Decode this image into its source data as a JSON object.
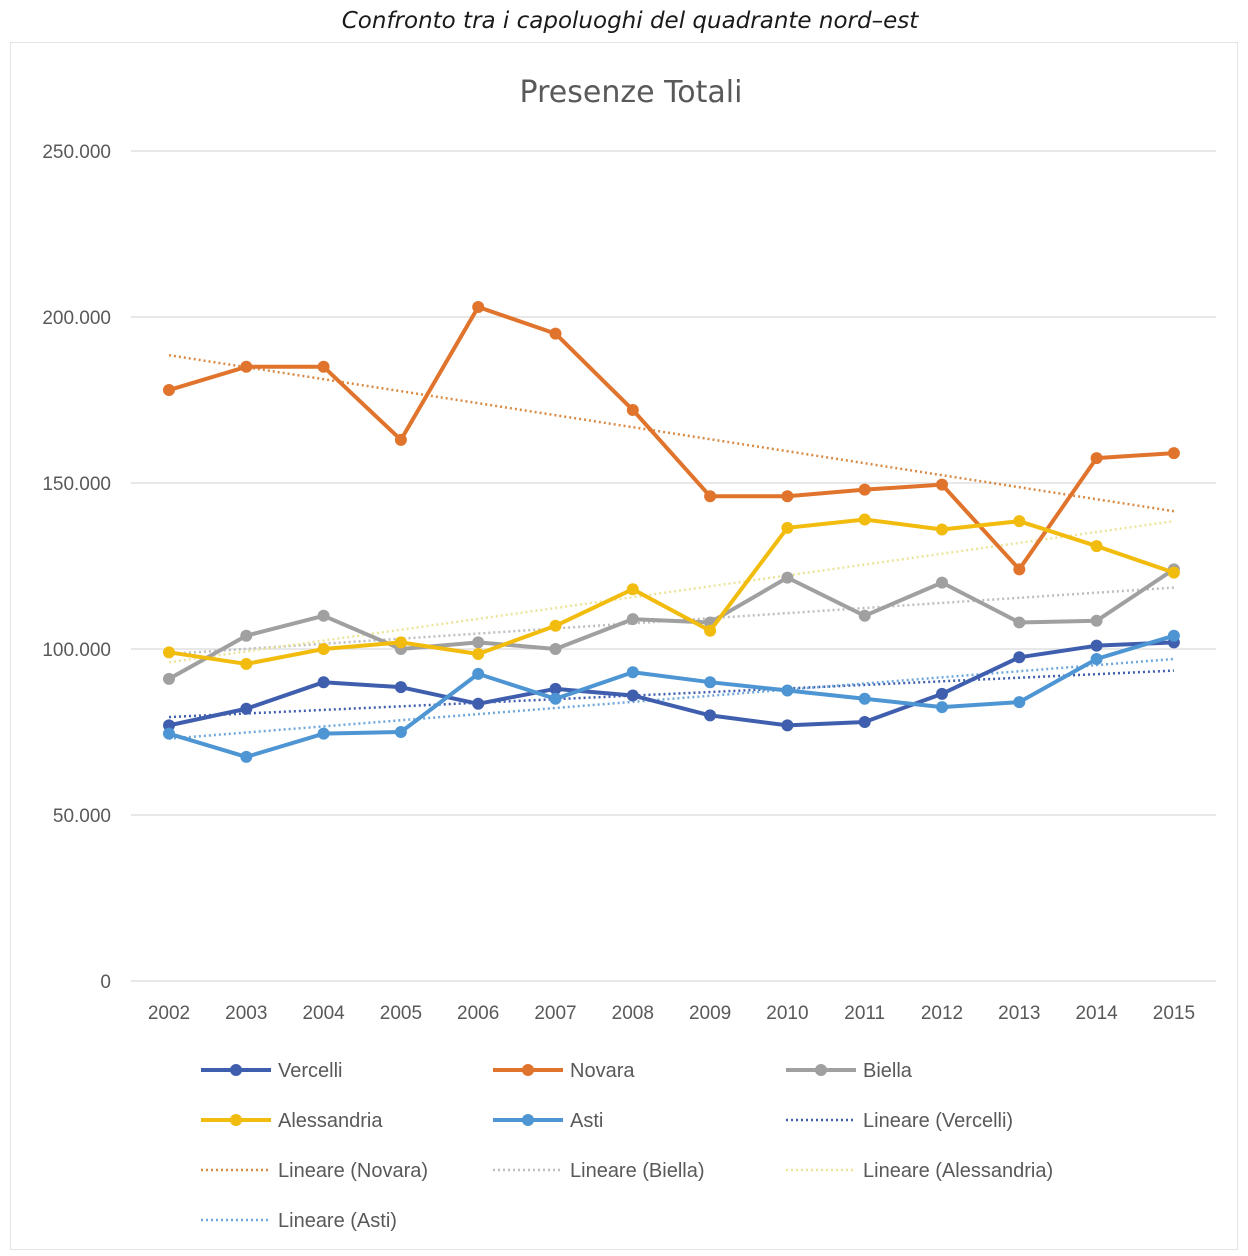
{
  "caption": "Confronto tra i capoluoghi del quadrante nord–est",
  "chart_data": {
    "type": "line",
    "title": "Presenze Totali",
    "xlabel": "",
    "ylabel": "",
    "categories": [
      "2002",
      "2003",
      "2004",
      "2005",
      "2006",
      "2007",
      "2008",
      "2009",
      "2010",
      "2011",
      "2012",
      "2013",
      "2014",
      "2015"
    ],
    "y_tick_labels": [
      "0",
      "50.000",
      "100.000",
      "150.000",
      "200.000",
      "250.000"
    ],
    "ylim": [
      0,
      250000
    ],
    "grid": true,
    "legend_position": "bottom",
    "series": [
      {
        "name": "Vercelli",
        "color": "#3F5FAE",
        "values": [
          77000,
          82000,
          90000,
          88500,
          83500,
          88000,
          86000,
          80000,
          77000,
          78000,
          86500,
          97500,
          101000,
          102000
        ]
      },
      {
        "name": "Novara",
        "color": "#E0742C",
        "values": [
          178000,
          185000,
          185000,
          163000,
          203000,
          195000,
          172000,
          146000,
          146000,
          148000,
          149500,
          124000,
          157500,
          159000
        ]
      },
      {
        "name": "Biella",
        "color": "#A0A0A0",
        "values": [
          91000,
          104000,
          110000,
          100000,
          102000,
          100000,
          109000,
          108000,
          121500,
          110000,
          120000,
          108000,
          108500,
          124000
        ]
      },
      {
        "name": "Alessandria",
        "color": "#F2BC0F",
        "values": [
          99000,
          95500,
          100000,
          102000,
          98500,
          107000,
          118000,
          105500,
          136500,
          139000,
          136000,
          138500,
          131000,
          123000
        ]
      },
      {
        "name": "Asti",
        "color": "#4E95D3",
        "values": [
          74500,
          67500,
          74500,
          75000,
          92500,
          85000,
          93000,
          90000,
          87500,
          85000,
          82500,
          84000,
          97000,
          104000
        ]
      }
    ],
    "trendlines": [
      {
        "name": "Lineare (Vercelli)",
        "color": "#3F5FAE",
        "start": 79500,
        "end": 93500
      },
      {
        "name": "Lineare (Novara)",
        "color": "#D98A45",
        "start": 188500,
        "end": 141500
      },
      {
        "name": "Lineare (Biella)",
        "color": "#BEBEBE",
        "start": 98500,
        "end": 118500
      },
      {
        "name": "Lineare (Alessandria)",
        "color": "#EDE49A",
        "start": 96000,
        "end": 138500
      },
      {
        "name": "Lineare (Asti)",
        "color": "#6FA8DC",
        "start": 73000,
        "end": 97000
      }
    ]
  }
}
